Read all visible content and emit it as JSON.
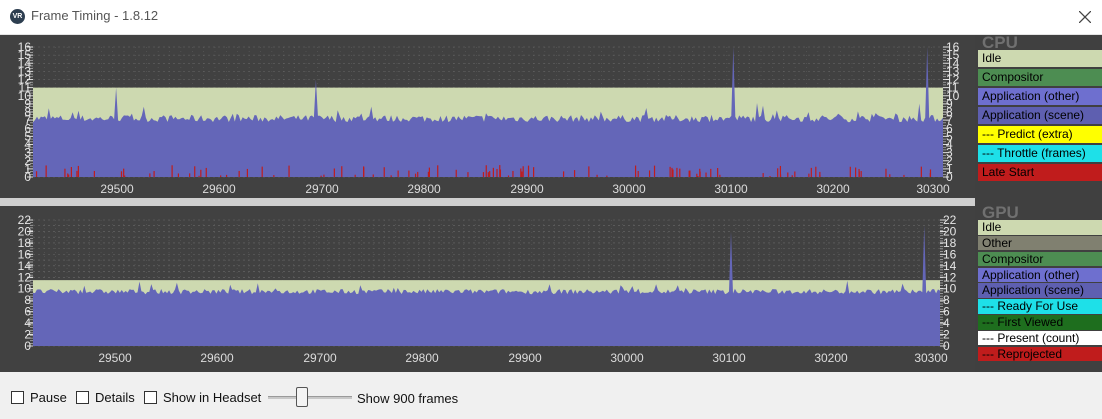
{
  "window": {
    "title": "Frame Timing - 1.8.12",
    "icon": "steamvr-icon",
    "close_icon": "close-icon"
  },
  "x_ticks": [
    "29500",
    "29600",
    "29700",
    "29800",
    "29900",
    "30000",
    "30100",
    "30200",
    "30300"
  ],
  "cpu": {
    "header": "CPU",
    "y_ticks": [
      "0",
      "1",
      "2",
      "3",
      "4",
      "5",
      "6",
      "7",
      "8",
      "9",
      "10",
      "11",
      "12",
      "13",
      "14",
      "15",
      "16"
    ],
    "legend": [
      {
        "label": "Idle",
        "bg": "#cdd9b0",
        "fg": "#000000"
      },
      {
        "label": "Compositor",
        "bg": "#4d8d52",
        "fg": "#000000"
      },
      {
        "label": "Application (other)",
        "bg": "#6e6fcf",
        "fg": "#000000"
      },
      {
        "label": "Application (scene)",
        "bg": "#5e5fb0",
        "fg": "#000000"
      },
      {
        "label": "--- Predict (extra)",
        "bg": "#ffff00",
        "fg": "#000000"
      },
      {
        "label": "--- Throttle (frames)",
        "bg": "#1ee0e8",
        "fg": "#000000"
      },
      {
        "label": "Late Start",
        "bg": "#c01c1c",
        "fg": "#000000"
      }
    ]
  },
  "gpu": {
    "header": "GPU",
    "y_ticks": [
      "0",
      "2",
      "4",
      "6",
      "8",
      "10",
      "12",
      "14",
      "16",
      "18",
      "20",
      "22"
    ],
    "legend": [
      {
        "label": "Idle",
        "bg": "#cdd9b0",
        "fg": "#000000"
      },
      {
        "label": "Other",
        "bg": "#808070",
        "fg": "#000000"
      },
      {
        "label": "Compositor",
        "bg": "#4d8d52",
        "fg": "#000000"
      },
      {
        "label": "Application (other)",
        "bg": "#6e6fcf",
        "fg": "#000000"
      },
      {
        "label": "Application (scene)",
        "bg": "#5e5fb0",
        "fg": "#000000"
      },
      {
        "label": "--- Ready For Use",
        "bg": "#1ee0e8",
        "fg": "#000000"
      },
      {
        "label": "--- First Viewed",
        "bg": "#1e6e1e",
        "fg": "#000000"
      },
      {
        "label": "--- Present (count)",
        "bg": "#ffffff",
        "fg": "#000000"
      },
      {
        "label": "--- Reprojected",
        "bg": "#c01c1c",
        "fg": "#000000"
      }
    ]
  },
  "toolbar": {
    "pause_label": "Pause",
    "details_label": "Details",
    "show_in_headset_label": "Show in Headset",
    "frames_label": "Show 900 frames"
  },
  "colors": {
    "idle": "#cdd9b0",
    "app": "#6466b8",
    "late": "#c01c1c",
    "chart_bg": "#414141",
    "grid": "#6a6a6a"
  }
}
